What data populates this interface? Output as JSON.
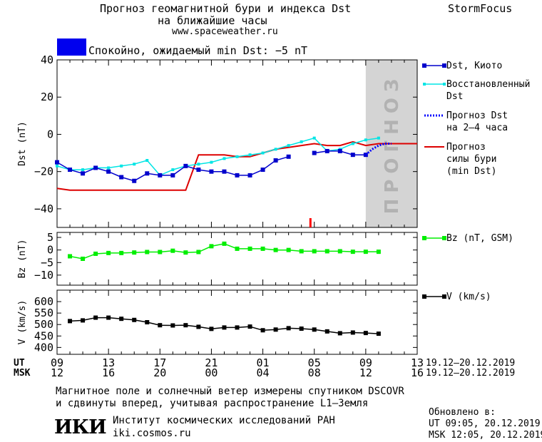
{
  "header": {
    "title_line1": "Прогноз геомагнитной бури и индекса Dst",
    "title_line2": "на ближайшие часы",
    "website": "www.spaceweather.ru",
    "brand": "StormFocus"
  },
  "status": {
    "color": "#0000ee",
    "text": "Спокойно, ожидаемый min Dst: −5 nT"
  },
  "forecast_zone_label": "ПРОГНОЗ",
  "colors": {
    "dst_kyoto": "#0000cc",
    "dst_restored": "#00e5e5",
    "dst_forecast": "#0000ff",
    "storm_forecast": "#dd0000",
    "bz": "#00ee00",
    "v": "#000000",
    "forecast_zone": "#d4d4d4",
    "event_marker": "#ff0000"
  },
  "chart_data": [
    {
      "id": "dst",
      "type": "line",
      "ylabel": "Dst (nT)",
      "ylim": [
        -50,
        40
      ],
      "yticks": [
        40,
        20,
        0,
        -20,
        -40
      ],
      "xlim": [
        0,
        28
      ],
      "forecast_start": 24,
      "event_marker_x": 19.7,
      "series": [
        {
          "name": "Dst, Киото",
          "key": "kyoto",
          "marker": "square",
          "x": [
            0,
            1,
            2,
            3,
            4,
            5,
            6,
            7,
            8,
            9,
            10,
            11,
            12,
            13,
            14,
            15,
            16,
            17,
            18,
            19,
            20,
            21,
            22,
            23,
            24
          ],
          "y": [
            -15,
            -19,
            -21,
            -18,
            -20,
            -23,
            -25,
            -21,
            -22,
            -22,
            -17,
            -19,
            -20,
            -20,
            -22,
            -22,
            -19,
            -14,
            -12,
            null,
            -10,
            -9,
            -9,
            -11,
            -11
          ]
        },
        {
          "name": "Восстановленный Dst",
          "key": "restored",
          "marker": "smallsquare",
          "x": [
            0,
            1,
            2,
            3,
            4,
            5,
            6,
            7,
            8,
            9,
            10,
            11,
            12,
            13,
            14,
            15,
            16,
            17,
            18,
            19,
            20,
            21,
            22,
            23,
            24,
            25
          ],
          "y": [
            -17,
            -19,
            -19,
            -18,
            -18,
            -17,
            -16,
            -14,
            -22,
            -19,
            -17,
            -16,
            -15,
            -13,
            -12,
            -11,
            -10,
            -8,
            -6,
            -4,
            -2,
            -9,
            -8,
            -5,
            -3,
            -2
          ]
        },
        {
          "name": "Прогноз Dst на 2–4 часа",
          "key": "forecast",
          "marker": "dotted",
          "x": [
            24,
            24.5,
            25,
            25.5,
            26
          ],
          "y": [
            -11,
            -8,
            -6,
            -5,
            -5
          ]
        },
        {
          "name": "Прогноз силы бури (min Dst)",
          "key": "storm",
          "marker": "line",
          "x": [
            0,
            1,
            2,
            3,
            4,
            5,
            6,
            7,
            8,
            9,
            10,
            11,
            12,
            13,
            14,
            15,
            16,
            17,
            18,
            19,
            20,
            21,
            22,
            23,
            24,
            25,
            26,
            27,
            28
          ],
          "y": [
            -29,
            -30,
            -30,
            -30,
            -30,
            -30,
            -30,
            -30,
            -30,
            -30,
            -30,
            -11,
            -11,
            -11,
            -12,
            -12,
            -10,
            -8,
            -7,
            -6,
            -5,
            -6,
            -6,
            -4,
            -6,
            -5,
            -5,
            -5,
            -5
          ]
        }
      ],
      "legend": [
        {
          "key": "kyoto",
          "lines": [
            "Dst, Киото"
          ]
        },
        {
          "key": "restored",
          "lines": [
            "Восстановленный",
            "Dst"
          ]
        },
        {
          "key": "forecast",
          "lines": [
            "Прогноз Dst",
            "на 2–4 часа"
          ]
        },
        {
          "key": "storm",
          "lines": [
            "Прогноз",
            "силы бури",
            "(min Dst)"
          ]
        }
      ]
    },
    {
      "id": "bz",
      "type": "line",
      "ylabel": "Bz (nT)",
      "ylim": [
        -14,
        7
      ],
      "yticks": [
        5,
        0,
        -5,
        -10
      ],
      "xlim": [
        0,
        28
      ],
      "series": [
        {
          "name": "Bz (nT, GSM)",
          "key": "bz",
          "marker": "square",
          "x": [
            1,
            2,
            3,
            4,
            5,
            6,
            7,
            8,
            9,
            10,
            11,
            12,
            13,
            14,
            15,
            16,
            17,
            18,
            19,
            20,
            21,
            22,
            23,
            24,
            25
          ],
          "y": [
            -2.5,
            -3.5,
            -1.5,
            -1.2,
            -1.2,
            -1,
            -0.8,
            -0.8,
            -0.3,
            -1,
            -0.8,
            1.5,
            2.5,
            0.5,
            0.5,
            0.5,
            0,
            0,
            -0.5,
            -0.5,
            -0.5,
            -0.5,
            -0.7,
            -0.7,
            -0.7
          ]
        }
      ],
      "legend": [
        {
          "key": "bz",
          "lines": [
            "Bz (nT, GSM)"
          ]
        }
      ]
    },
    {
      "id": "v",
      "type": "line",
      "ylabel": "V (km/s)",
      "ylim": [
        370,
        650
      ],
      "yticks": [
        600,
        550,
        500,
        450,
        400
      ],
      "xlim": [
        0,
        28
      ],
      "series": [
        {
          "name": "V (km/s)",
          "key": "v",
          "marker": "square",
          "x": [
            1,
            2,
            3,
            4,
            5,
            6,
            7,
            8,
            9,
            10,
            11,
            12,
            13,
            14,
            15,
            16,
            17,
            18,
            19,
            20,
            21,
            22,
            23,
            24,
            25
          ],
          "y": [
            515,
            518,
            530,
            530,
            525,
            520,
            510,
            497,
            496,
            497,
            490,
            481,
            487,
            487,
            491,
            475,
            478,
            484,
            482,
            478,
            470,
            462,
            465,
            463,
            460
          ]
        }
      ],
      "legend": [
        {
          "key": "v",
          "lines": [
            "V (km/s)"
          ]
        }
      ]
    }
  ],
  "time_axis": {
    "ut_label": "UT",
    "msk_label": "MSK",
    "ticks_ut": [
      "09",
      "13",
      "17",
      "21",
      "01",
      "05",
      "09",
      "13"
    ],
    "ticks_msk": [
      "12",
      "16",
      "20",
      "00",
      "04",
      "08",
      "12",
      "16"
    ],
    "tick_x": [
      0,
      4,
      8,
      12,
      16,
      20,
      24,
      28
    ],
    "date_range_ut": "19.12–20.12.2019",
    "date_range_msk": "19.12–20.12.2019"
  },
  "footer": {
    "note_line1": "Магнитное поле и солнечный ветер измерены спутником DSCOVR",
    "note_line2": "и сдвинуты вперед, учитывая распространение L1–Земля",
    "logo": "ИКИ",
    "institute": "Институт космических исследований РАН",
    "institute_url": "iki.cosmos.ru",
    "updated_label": "Обновлено в:",
    "updated_ut": "UT   09:05, 20.12.2019",
    "updated_msk": "MSK 12:05, 20.12.2019"
  }
}
